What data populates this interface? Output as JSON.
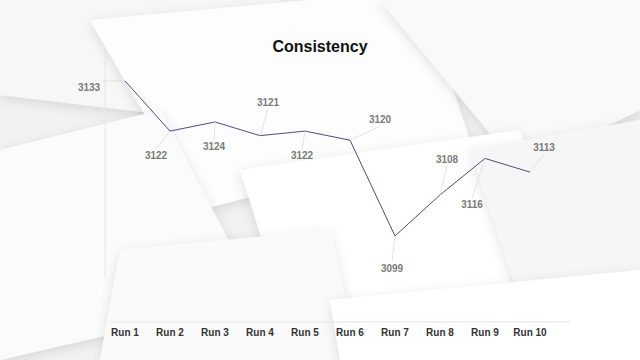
{
  "chart_data": {
    "type": "line",
    "title": "Consistency",
    "categories": [
      "Run 1",
      "Run 2",
      "Run 3",
      "Run 4",
      "Run 5",
      "Run 6",
      "Run 7",
      "Run 8",
      "Run 9",
      "Run 10"
    ],
    "values": [
      3133,
      3122,
      3124,
      3121,
      3122,
      3120,
      3099,
      3108,
      3116,
      3113
    ],
    "color": "#4b4f7c",
    "ylim": [
      3090,
      3140
    ],
    "tick_labels": "x",
    "data_labels": true,
    "grid": false
  }
}
